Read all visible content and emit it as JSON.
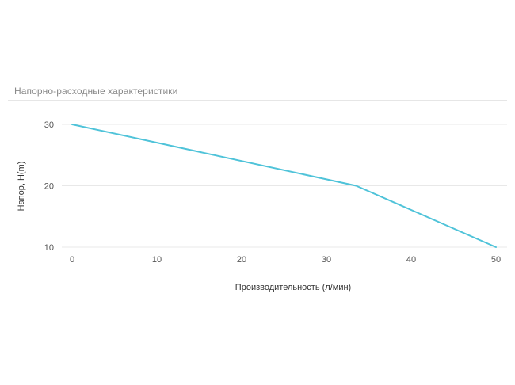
{
  "chart_data": {
    "type": "line",
    "title": "Напорно-расходные характеристики",
    "xlabel": "Производительность (л/мин)",
    "ylabel": "Напор, H(m)",
    "x": [
      0,
      33.5,
      50
    ],
    "series": [
      {
        "values": [
          30,
          20,
          10
        ],
        "color": "#4fc3d9"
      }
    ],
    "xlim": [
      0,
      50
    ],
    "ylim": [
      10,
      30
    ],
    "x_ticks": [
      "0",
      "10",
      "20",
      "30",
      "40",
      "50"
    ],
    "y_ticks": [
      "10",
      "20",
      "30"
    ],
    "grid": "horizontal",
    "legend": "none"
  }
}
